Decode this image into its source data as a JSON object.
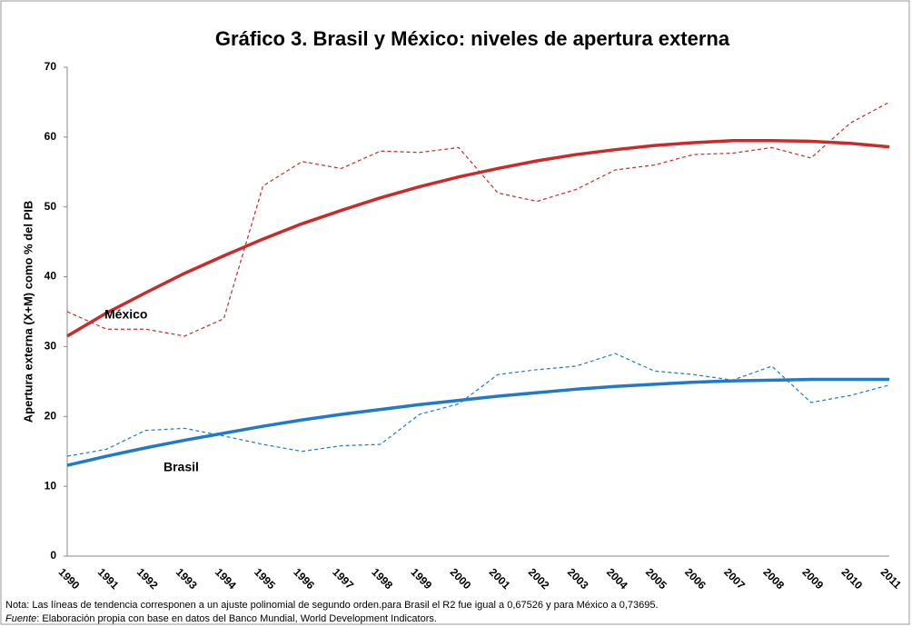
{
  "chart_data": {
    "type": "line",
    "title": "Gráfico 3. Brasil y México: niveles de apertura externa",
    "y_label": "Apertura externa  (X+M)  como % del PIB",
    "categories": [
      "1990",
      "1991",
      "1992",
      "1993",
      "1994",
      "1995",
      "1996",
      "1997",
      "1998",
      "1999",
      "2000",
      "2001",
      "2002",
      "2003",
      "2004",
      "2005",
      "2006",
      "2007",
      "2008",
      "2009",
      "2010",
      "2011"
    ],
    "ylim": [
      0,
      70
    ],
    "yticks": [
      0,
      10,
      20,
      30,
      40,
      50,
      60,
      70
    ],
    "grid": false,
    "series": [
      {
        "name": "México",
        "color": "#cc2a2a",
        "style": "dashed",
        "values": [
          35,
          32.5,
          32.5,
          31.5,
          34,
          53,
          56.5,
          55.5,
          58,
          57.8,
          58.5,
          52,
          50.8,
          52.5,
          55.3,
          56,
          57.5,
          57.7,
          58.5,
          57,
          62,
          65
        ]
      },
      {
        "color": "#cc2a2a",
        "style": "trend",
        "values": [
          31.5,
          34.8,
          37.7,
          40.5,
          43,
          45.4,
          47.6,
          49.5,
          51.3,
          52.9,
          54.3,
          55.5,
          56.6,
          57.5,
          58.2,
          58.8,
          59.2,
          59.5,
          59.5,
          59.4,
          59.1,
          58.6
        ]
      },
      {
        "name": "Brasil",
        "color": "#1f7ac8",
        "style": "dashed",
        "values": [
          14.3,
          15.3,
          18,
          18.3,
          17.2,
          16,
          15,
          15.8,
          16,
          20.3,
          21.8,
          26,
          26.7,
          27.2,
          29,
          26.5,
          26,
          25.2,
          27.2,
          22,
          23,
          24.5
        ]
      },
      {
        "color": "#1f7ac8",
        "style": "trend",
        "values": [
          13,
          14.3,
          15.5,
          16.6,
          17.6,
          18.6,
          19.5,
          20.3,
          21,
          21.7,
          22.3,
          22.9,
          23.4,
          23.9,
          24.3,
          24.6,
          24.9,
          25.1,
          25.2,
          25.3,
          25.3,
          25.3
        ]
      }
    ],
    "notes": [
      "Nota: Las líneas de tendencia corresponen a un ajuste polinomial de segundo orden.para Brasil el R2 fue igual a 0,67526 y para México a 0,73695.",
      "Fuente",
      ": Elaboración propia con base en datos del Banco Mundial, World Development Indicators."
    ]
  }
}
